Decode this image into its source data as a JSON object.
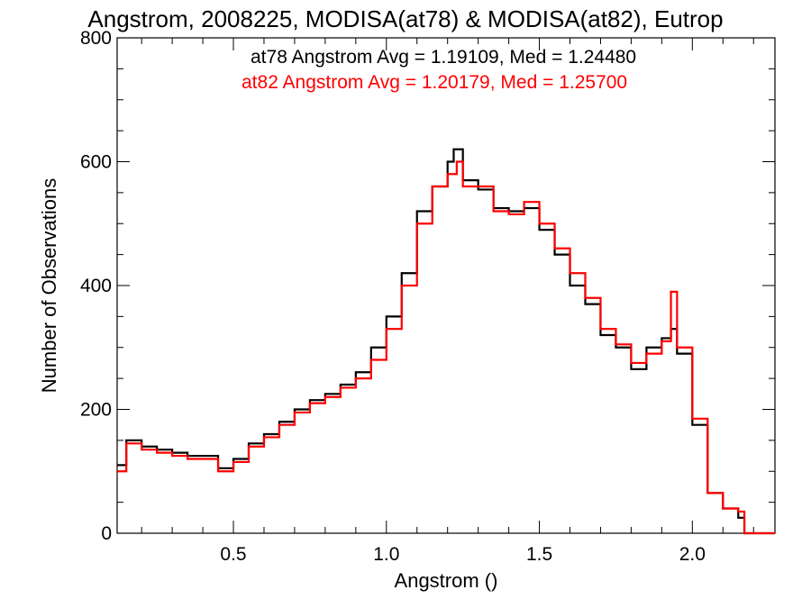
{
  "chart_data": {
    "type": "line",
    "title": "Angstrom, 2008225, MODISA(at78) & MODISA(at82), Eutrop",
    "xlabel": "Angstrom ()",
    "ylabel": "Number of Observations",
    "xlim": [
      0.12,
      2.27
    ],
    "ylim": [
      0,
      800
    ],
    "x_ticks": [
      0.5,
      1.0,
      1.5,
      2.0
    ],
    "x_tick_labels": [
      "0.5",
      "1.0",
      "1.5",
      "2.0"
    ],
    "y_ticks": [
      0,
      200,
      400,
      600,
      800
    ],
    "y_tick_labels": [
      "0",
      "200",
      "400",
      "600",
      "800"
    ],
    "grid": false,
    "step": true,
    "annotations": [
      {
        "text": "at78 Angstrom Avg = 1.19109, Med = 1.24480",
        "color": "#000000"
      },
      {
        "text": "at82 Angstrom Avg = 1.20179, Med = 1.25700",
        "color": "#ff0000"
      }
    ],
    "series": [
      {
        "name": "at78",
        "color": "#000000",
        "x": [
          0.12,
          0.15,
          0.2,
          0.25,
          0.3,
          0.35,
          0.4,
          0.45,
          0.5,
          0.55,
          0.6,
          0.65,
          0.7,
          0.75,
          0.8,
          0.85,
          0.9,
          0.95,
          1.0,
          1.05,
          1.1,
          1.15,
          1.2,
          1.22,
          1.25,
          1.3,
          1.35,
          1.4,
          1.45,
          1.5,
          1.55,
          1.6,
          1.65,
          1.7,
          1.75,
          1.8,
          1.85,
          1.9,
          1.93,
          1.95,
          2.0,
          2.05,
          2.1,
          2.15,
          2.17,
          2.2,
          2.27
        ],
        "y": [
          110,
          150,
          140,
          135,
          130,
          125,
          125,
          105,
          120,
          145,
          160,
          180,
          200,
          215,
          225,
          240,
          260,
          300,
          350,
          420,
          520,
          560,
          600,
          620,
          570,
          555,
          525,
          520,
          525,
          490,
          450,
          400,
          370,
          320,
          300,
          265,
          300,
          315,
          330,
          290,
          175,
          65,
          40,
          25,
          0,
          0,
          0
        ]
      },
      {
        "name": "at82",
        "color": "#ff0000",
        "x": [
          0.12,
          0.15,
          0.2,
          0.25,
          0.3,
          0.35,
          0.4,
          0.45,
          0.5,
          0.55,
          0.6,
          0.65,
          0.7,
          0.75,
          0.8,
          0.85,
          0.9,
          0.95,
          1.0,
          1.05,
          1.1,
          1.15,
          1.2,
          1.23,
          1.25,
          1.3,
          1.35,
          1.4,
          1.45,
          1.5,
          1.55,
          1.6,
          1.65,
          1.7,
          1.75,
          1.8,
          1.85,
          1.9,
          1.93,
          1.95,
          2.0,
          2.05,
          2.1,
          2.15,
          2.17,
          2.2,
          2.27
        ],
        "y": [
          100,
          145,
          135,
          130,
          125,
          120,
          120,
          100,
          115,
          140,
          155,
          175,
          195,
          210,
          220,
          235,
          250,
          280,
          330,
          400,
          500,
          560,
          580,
          600,
          560,
          560,
          520,
          515,
          535,
          500,
          460,
          420,
          380,
          330,
          305,
          275,
          290,
          310,
          390,
          300,
          185,
          65,
          40,
          35,
          0,
          0,
          0
        ]
      }
    ]
  }
}
